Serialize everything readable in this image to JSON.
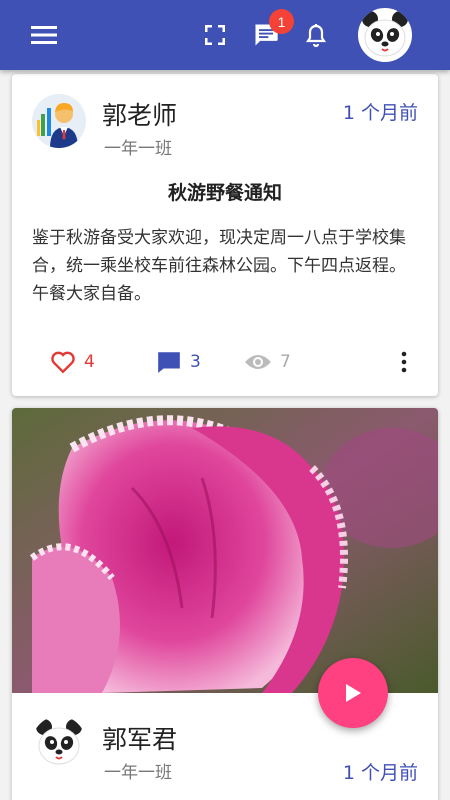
{
  "app_bar": {
    "chat_badge": "1",
    "icons": [
      "menu-icon",
      "fullscreen-icon",
      "chat-icon",
      "bell-icon"
    ],
    "color": "#3f51b5"
  },
  "posts": [
    {
      "author": "郭老师",
      "class_name": "一年一班",
      "time": "1 个月前",
      "title": "秋游野餐通知",
      "body": "鉴于秋游备受大家欢迎，现决定周一八点于学校集合，统一乘坐校车前往森林公园。下午四点返程。午餐大家自备。",
      "likes": "4",
      "comments": "3",
      "views": "7"
    },
    {
      "author": "郭军君",
      "class_name": "一年一班",
      "time": "1 个月前"
    }
  ],
  "colors": {
    "like": "#e53935",
    "accent": "#3f51b5",
    "fab": "#ff4081"
  }
}
